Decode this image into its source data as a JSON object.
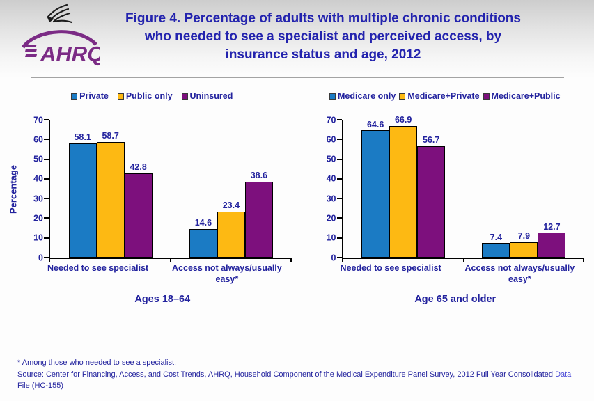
{
  "header": {
    "logo_text": "AHRQ",
    "title": "Figure 4. Percentage of adults with multiple chronic conditions who needed to see a specialist and perceived access, by insurance status and age, 2012"
  },
  "colors": {
    "navy_text": "#23239E",
    "title_blue": "#2323AE",
    "link_blue": "#4A4AD8",
    "logo_purple": "#7B2B85",
    "bar_blue": "#1B7BC4",
    "bar_yellow": "#FDB913",
    "bar_purple": "#7D107D"
  },
  "chart_data": [
    {
      "type": "bar",
      "title": "Ages 18–64",
      "ylabel": "Percentage",
      "ylim": [
        0,
        70
      ],
      "ytick_step": 10,
      "grid": false,
      "legend_position": "top",
      "categories": [
        "Needed to see specialist",
        "Access not always/usually easy*"
      ],
      "series": [
        {
          "name": "Private",
          "color": "#1B7BC4",
          "values": [
            58.1,
            14.6
          ]
        },
        {
          "name": "Public only",
          "color": "#FDB913",
          "values": [
            58.7,
            23.4
          ]
        },
        {
          "name": "Uninsured",
          "color": "#7D107D",
          "values": [
            42.8,
            38.6
          ]
        }
      ]
    },
    {
      "type": "bar",
      "title": "Age 65 and older",
      "ylabel": "",
      "ylim": [
        0,
        70
      ],
      "ytick_step": 10,
      "grid": false,
      "legend_position": "top",
      "categories": [
        "Needed to see specialist",
        "Access not always/usually easy*"
      ],
      "series": [
        {
          "name": "Medicare only",
          "color": "#1B7BC4",
          "values": [
            64.6,
            7.4
          ]
        },
        {
          "name": "Medicare+Private",
          "color": "#FDB913",
          "values": [
            66.9,
            7.9
          ]
        },
        {
          "name": "Medicare+Public",
          "color": "#7D107D",
          "values": [
            56.7,
            12.7
          ]
        }
      ]
    }
  ],
  "footer": {
    "footnote": "* Among those who needed to see a specialist.",
    "source_prefix": "Source: Center for Financing, Access, and Cost Trends, AHRQ, Household Component of the Medical Expenditure Panel Survey, 2012 Full Year Consolidated ",
    "source_link": "Data",
    "source_suffix": " File (HC-155)"
  }
}
